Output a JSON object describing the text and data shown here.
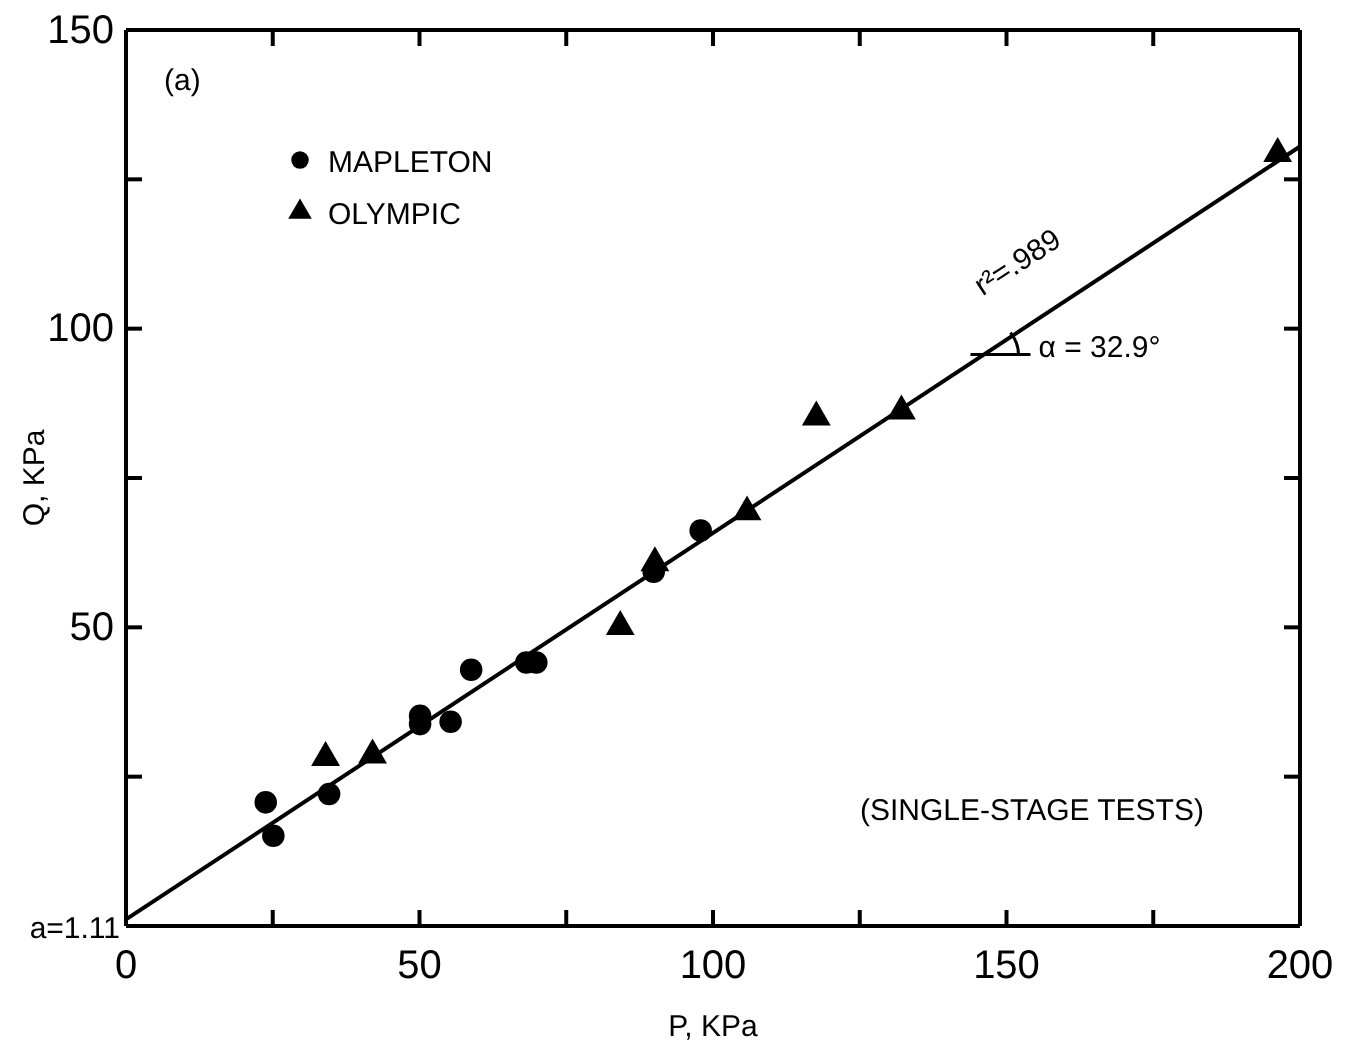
{
  "chart_data": {
    "type": "scatter",
    "xlabel": "P, KPa",
    "ylabel": "Q, KPa",
    "xlim": [
      0,
      200
    ],
    "ylim": [
      0,
      150
    ],
    "xticks": [
      0,
      {
        "value": 25,
        "label": null
      },
      50,
      {
        "value": 75,
        "label": null
      },
      100,
      {
        "value": 125,
        "label": null
      },
      150,
      {
        "value": 175,
        "label": null
      },
      200
    ],
    "yticks": [
      {
        "value": 0,
        "label": null
      },
      {
        "value": 25,
        "label": null
      },
      50,
      {
        "value": 75,
        "label": null
      },
      100,
      {
        "value": 125,
        "label": null
      },
      150
    ],
    "legend": "top left",
    "grid": false,
    "series": [
      {
        "name": "MAPLETON",
        "color": "#000000",
        "marker": "circle",
        "x": [
          23.8,
          25.1,
          34.6,
          50.1,
          50.1,
          55.3,
          58.8,
          68.2,
          69.9,
          89.9,
          97.9
        ],
        "values": [
          20.7,
          15.1,
          22.1,
          35.2,
          33.8,
          34.2,
          42.9,
          44.1,
          44.1,
          59.3,
          66.2
        ]
      },
      {
        "name": "OLYMPIC",
        "color": "#000000",
        "marker": "triangle",
        "x": [
          34,
          42,
          84.2,
          90.1,
          105.8,
          117.6,
          132.1,
          196.2
        ],
        "values": [
          28.2,
          28.6,
          50.1,
          60.8,
          69.3,
          85.2,
          86.2,
          129.3
        ]
      },
      {
        "type": "line",
        "color": "#000000",
        "marker": "none",
        "line_style": "solid",
        "x": [
          0,
          200
        ],
        "values": [
          1.1,
          130.5
        ]
      }
    ],
    "annotations": [
      "(a)",
      "(SINGLE-STAGE TESTS)",
      "a=1.11",
      "r²=.989",
      "α = 32.9°"
    ]
  }
}
